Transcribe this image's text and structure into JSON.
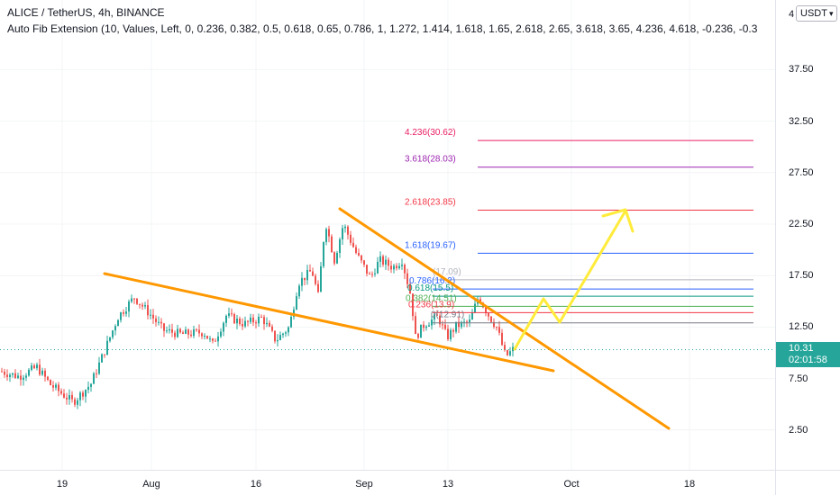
{
  "legend": {
    "title": "ALICE / TetherUS, 4h, BINANCE",
    "study": "Auto Fib Extension (10, Values, Left, 0, 0.236, 0.382, 0.5, 0.618, 0.65, 0.786, 1, 1.272, 1.414, 1.618, 1.65, 2.618, 2.65, 3.618, 3.65, 4.236, 4.618, -0.236, -0.3"
  },
  "price_scale": {
    "currency": "USDT",
    "top_partial": "4",
    "ticks": [
      "37.50",
      "32.50",
      "27.50",
      "22.50",
      "17.50",
      "12.50",
      "7.50",
      "2.50"
    ],
    "current_price": "10.31",
    "countdown": "02:01:58"
  },
  "time_scale": {
    "ticks": [
      "19",
      "Aug",
      "16",
      "Sep",
      "13",
      "Oct",
      "18"
    ]
  },
  "fib_levels": [
    {
      "label": "4.236(30.62)",
      "price": 30.62,
      "color": "#e91e63"
    },
    {
      "label": "3.618(28.03)",
      "price": 28.03,
      "color": "#9c27b0"
    },
    {
      "label": "2.618(23.85)",
      "price": 23.85,
      "color": "#f23645"
    },
    {
      "label": "1.618(19.67)",
      "price": 19.67,
      "color": "#2962ff"
    },
    {
      "label": "(17.09)",
      "price": 17.09,
      "color": "#b2b5be"
    },
    {
      "label": "0.786(16.2)",
      "price": 16.2,
      "color": "#2962ff"
    },
    {
      "label": "0.618(15.5)",
      "price": 15.5,
      "color": "#089981"
    },
    {
      "label": "0.382(14.51)",
      "price": 14.51,
      "color": "#4caf50"
    },
    {
      "label": "0.236(13.9)",
      "price": 13.9,
      "color": "#f23645"
    },
    {
      "label": "0(12.91)",
      "price": 12.91,
      "color": "#787b86"
    }
  ],
  "colors": {
    "up": "#26a69a",
    "down": "#ef5350",
    "trendline": "#ff9800",
    "projection": "#ffeb3b",
    "current_price_line": "#26a69a"
  },
  "icons": {
    "currency_dropdown": "chevron-down-icon"
  }
}
